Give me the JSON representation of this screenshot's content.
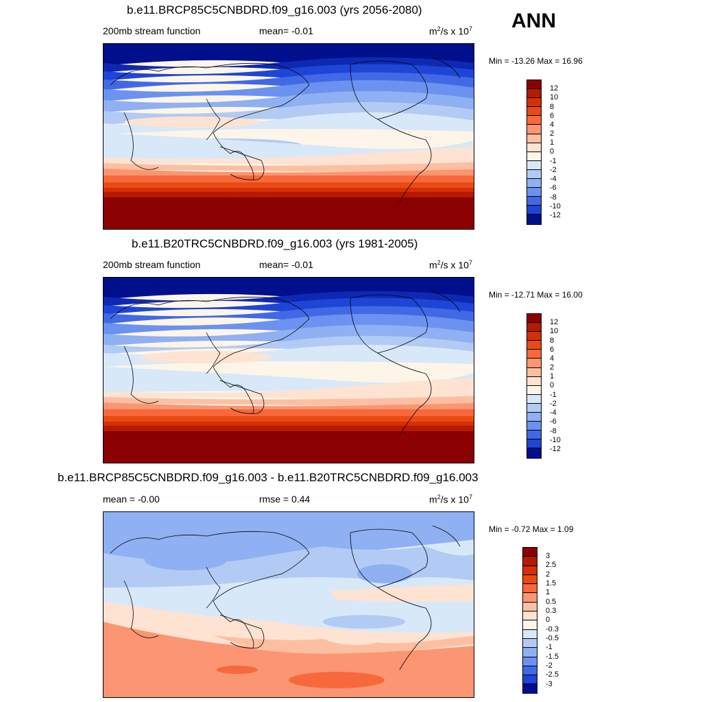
{
  "season": "ANN",
  "units_base": "m",
  "units_exp": "2",
  "units_mid": "/s x 10",
  "units_exp2": "7",
  "panels": [
    {
      "title": "b.e11.BRCP85C5CNBDRD.f09_g16.003 (yrs 2056-2080)",
      "left_label": "200mb stream function",
      "center_label": "mean=  -0.01",
      "minmax": "Min = -13.26 Max =  16.96",
      "levels": [
        "12",
        "10",
        "8",
        "6",
        "4",
        "2",
        "1",
        "0",
        "-1",
        "-2",
        "-4",
        "-6",
        "-8",
        "-10",
        "-12"
      ],
      "colors": [
        "#8b0000",
        "#b41a00",
        "#d42f05",
        "#ea4a12",
        "#f7693b",
        "#fb9572",
        "#fdbfa2",
        "#fee3d2",
        "#fdf5e8",
        "#d7e8f8",
        "#b2cbf4",
        "#8fb0f2",
        "#6b92f0",
        "#4169e6",
        "#1f45d6",
        "#0d29b3",
        "#000f8c"
      ]
    },
    {
      "title": "b.e11.B20TRC5CNBDRD.f09_g16.003 (yrs 1981-2005)",
      "left_label": "200mb stream function",
      "center_label": "mean=  -0.01",
      "minmax": "Min = -12.71 Max =  16.00",
      "levels": [
        "12",
        "10",
        "8",
        "6",
        "4",
        "2",
        "1",
        "0",
        "-1",
        "-2",
        "-4",
        "-6",
        "-8",
        "-10",
        "-12"
      ],
      "colors": [
        "#8b0000",
        "#b41a00",
        "#d42f05",
        "#ea4a12",
        "#f7693b",
        "#fb9572",
        "#fdbfa2",
        "#fee3d2",
        "#fdf5e8",
        "#d7e8f8",
        "#b2cbf4",
        "#8fb0f2",
        "#6b92f0",
        "#4169e6",
        "#1f45d6",
        "#0d29b3",
        "#000f8c"
      ]
    },
    {
      "title": "b.e11.BRCP85C5CNBDRD.f09_g16.003 - b.e11.B20TRC5CNBDRD.f09_g16.003",
      "left_label": "mean =  -0.00",
      "center_label": "rmse =   0.44",
      "minmax": "Min =  -0.72 Max =   1.09",
      "levels": [
        "3",
        "2.5",
        "2",
        "1.5",
        "1",
        "0.5",
        "0.3",
        "0",
        "-0.3",
        "-0.5",
        "-1",
        "-1.5",
        "-2",
        "-2.5",
        "-3"
      ],
      "colors": [
        "#8b0000",
        "#b41a00",
        "#d42f05",
        "#ea4a12",
        "#f7693b",
        "#fb9572",
        "#fdbfa2",
        "#fee3d2",
        "#fdf5e8",
        "#d7e8f8",
        "#b2cbf4",
        "#8fb0f2",
        "#6b92f0",
        "#4169e6",
        "#1f45d6",
        "#0d29b3",
        "#000f8c"
      ]
    }
  ]
}
